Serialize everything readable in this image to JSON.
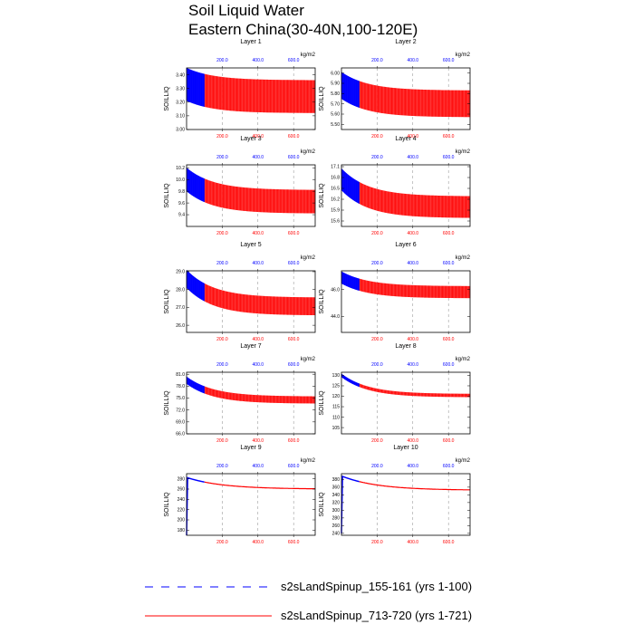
{
  "figure": {
    "title_line1": "Soil Liquid Water",
    "title_line2": "Eastern China(30-40N,100-120E)",
    "ylabel": "SOILLIQ",
    "units": "kg/m2"
  },
  "legend": [
    {
      "label": "s2sLandSpinup_155-161 (yrs 1-100)",
      "color": "#0000ff",
      "style": "dashed"
    },
    {
      "label": "s2sLandSpinup_713-720 (yrs 1-721)",
      "color": "#ff0000",
      "style": "solid"
    }
  ],
  "colors": {
    "blue_series": "#0000ff",
    "red_series": "#ff0000",
    "red_band": "#ff8888"
  },
  "chart_data": [
    {
      "type": "line",
      "title": "Layer 1",
      "ylabel": "SOILLIQ",
      "ylim": [
        3.0,
        3.45
      ],
      "yticks": [
        "3.00",
        "3.10",
        "3.20",
        "3.30",
        "3.40"
      ],
      "xlim": [
        0,
        721
      ],
      "bottom_xticks": [
        "200.0",
        "400.0",
        "600.0"
      ],
      "top_xticks": [
        "200.0",
        "400.0",
        "600.0"
      ],
      "series": [
        {
          "name": "s2sLandSpinup_155-161 (yrs 1-100)",
          "x_end": 100
        },
        {
          "name": "s2sLandSpinup_713-720 (yrs 1-721)",
          "x_end": 721
        }
      ],
      "start_mean": 3.33,
      "end_mean": 3.24,
      "seasonal_amp": 0.12
    },
    {
      "type": "line",
      "title": "Layer 2",
      "ylabel": "SOILLIQ",
      "ylim": [
        5.45,
        6.05
      ],
      "yticks": [
        "5.50",
        "5.60",
        "5.70",
        "5.80",
        "5.90",
        "6.00"
      ],
      "xlim": [
        0,
        721
      ],
      "bottom_xticks": [
        "200.0",
        "400.0",
        "600.0"
      ],
      "top_xticks": [
        "200.0",
        "400.0",
        "600.0"
      ],
      "series": [
        {
          "name": "s2sLandSpinup_155-161 (yrs 1-100)",
          "x_end": 100
        },
        {
          "name": "s2sLandSpinup_713-720 (yrs 1-721)",
          "x_end": 721
        }
      ],
      "start_mean": 5.88,
      "end_mean": 5.7,
      "seasonal_amp": 0.13
    },
    {
      "type": "line",
      "title": "Layer 3",
      "ylabel": "SOILLIQ",
      "ylim": [
        9.2,
        10.25
      ],
      "yticks": [
        "9.4",
        "9.6",
        "9.8",
        "10.0",
        "10.2"
      ],
      "xlim": [
        0,
        721
      ],
      "bottom_xticks": [
        "200.0",
        "400.0",
        "600.0"
      ],
      "top_xticks": [
        "200.0",
        "400.0",
        "600.0"
      ],
      "series": [
        {
          "name": "s2sLandSpinup_155-161 (yrs 1-100)",
          "x_end": 100
        },
        {
          "name": "s2sLandSpinup_713-720 (yrs 1-721)",
          "x_end": 721
        }
      ],
      "start_mean": 10.0,
      "end_mean": 9.62,
      "seasonal_amp": 0.2
    },
    {
      "type": "line",
      "title": "Layer 4",
      "ylabel": "SOILLIQ",
      "ylim": [
        15.45,
        17.15
      ],
      "yticks": [
        "15.6",
        "15.9",
        "16.2",
        "16.5",
        "16.8",
        "17.1"
      ],
      "xlim": [
        0,
        721
      ],
      "bottom_xticks": [
        "200.0",
        "400.0",
        "600.0"
      ],
      "top_xticks": [
        "200.0",
        "400.0",
        "600.0"
      ],
      "series": [
        {
          "name": "s2sLandSpinup_155-161 (yrs 1-100)",
          "x_end": 100
        },
        {
          "name": "s2sLandSpinup_713-720 (yrs 1-721)",
          "x_end": 721
        }
      ],
      "start_mean": 16.75,
      "end_mean": 15.98,
      "seasonal_amp": 0.3
    },
    {
      "type": "line",
      "title": "Layer 5",
      "ylabel": "SOILLIQ",
      "ylim": [
        25.6,
        29.05
      ],
      "yticks": [
        "26.0",
        "27.0",
        "28.0",
        "29.0"
      ],
      "xlim": [
        0,
        721
      ],
      "bottom_xticks": [
        "200.0",
        "400.0",
        "600.0"
      ],
      "top_xticks": [
        "200.0",
        "400.0",
        "600.0"
      ],
      "series": [
        {
          "name": "s2sLandSpinup_155-161 (yrs 1-100)",
          "x_end": 100
        },
        {
          "name": "s2sLandSpinup_713-720 (yrs 1-721)",
          "x_end": 721
        }
      ],
      "start_mean": 28.6,
      "end_mean": 27.05,
      "seasonal_amp": 0.5
    },
    {
      "type": "line",
      "title": "Layer 6",
      "ylabel": "SOILLIQ",
      "ylim": [
        42.8,
        47.4
      ],
      "yticks": [
        "44.0",
        "46.0"
      ],
      "xlim": [
        0,
        721
      ],
      "bottom_xticks": [
        "200.0",
        "400.0",
        "600.0"
      ],
      "top_xticks": [
        "200.0",
        "400.0",
        "600.0"
      ],
      "series": [
        {
          "name": "s2sLandSpinup_155-161 (yrs 1-100)",
          "x_end": 100
        },
        {
          "name": "s2sLandSpinup_713-720 (yrs 1-721)",
          "x_end": 721
        }
      ],
      "start_mean": 46.9,
      "end_mean": 45.8,
      "seasonal_amp": 0.45
    },
    {
      "type": "line",
      "title": "Layer 7",
      "ylabel": "SOILLIQ",
      "ylim": [
        66.0,
        81.5
      ],
      "yticks": [
        "66.0",
        "69.0",
        "72.0",
        "75.0",
        "78.0",
        "81.0"
      ],
      "xlim": [
        0,
        721
      ],
      "bottom_xticks": [
        "200.0",
        "400.0",
        "600.0"
      ],
      "top_xticks": [
        "200.0",
        "400.0",
        "600.0"
      ],
      "series": [
        {
          "name": "s2sLandSpinup_155-161 (yrs 1-100)",
          "x_end": 100
        },
        {
          "name": "s2sLandSpinup_713-720 (yrs 1-721)",
          "x_end": 721
        }
      ],
      "start_mean": 79.5,
      "end_mean": 74.5,
      "seasonal_amp": 0.9
    },
    {
      "type": "line",
      "title": "Layer 8",
      "ylabel": "SOILLIQ",
      "ylim": [
        102.0,
        131.5
      ],
      "yticks": [
        "105",
        "110",
        "115",
        "120",
        "125",
        "130"
      ],
      "xlim": [
        0,
        721
      ],
      "bottom_xticks": [
        "200.0",
        "400.0",
        "600.0"
      ],
      "top_xticks": [
        "200.0",
        "400.0",
        "600.0"
      ],
      "series": [
        {
          "name": "s2sLandSpinup_155-161 (yrs 1-100)",
          "x_end": 100
        },
        {
          "name": "s2sLandSpinup_713-720 (yrs 1-721)",
          "x_end": 721
        }
      ],
      "start_mean": 130.0,
      "end_mean": 120.3,
      "seasonal_amp": 0.8
    },
    {
      "type": "line",
      "title": "Layer 9",
      "ylabel": "SOILLIQ",
      "ylim": [
        170.0,
        290.0
      ],
      "yticks": [
        "180",
        "200",
        "220",
        "240",
        "260",
        "280"
      ],
      "xlim": [
        0,
        721
      ],
      "bottom_xticks": [
        "200.0",
        "400.0",
        "600.0"
      ],
      "top_xticks": [
        "200.0",
        "400.0",
        "600.0"
      ],
      "series": [
        {
          "name": "s2sLandSpinup_155-161 (yrs 1-100)",
          "x_end": 100
        },
        {
          "name": "s2sLandSpinup_713-720 (yrs 1-721)",
          "x_end": 721
        }
      ],
      "start_mean": 282.0,
      "end_mean": 260.0,
      "seasonal_amp": 0.5,
      "ramp_from": 170.0
    },
    {
      "type": "line",
      "title": "Layer 10",
      "ylabel": "SOILLIQ",
      "ylim": [
        235.0,
        395.0
      ],
      "yticks": [
        "240",
        "260",
        "280",
        "300",
        "320",
        "340",
        "360",
        "380"
      ],
      "xlim": [
        0,
        721
      ],
      "bottom_xticks": [
        "200.0",
        "400.0",
        "600.0"
      ],
      "top_xticks": [
        "200.0",
        "400.0",
        "600.0"
      ],
      "series": [
        {
          "name": "s2sLandSpinup_155-161 (yrs 1-100)",
          "x_end": 100
        },
        {
          "name": "s2sLandSpinup_713-720 (yrs 1-721)",
          "x_end": 721
        }
      ],
      "start_mean": 388.0,
      "end_mean": 352.0,
      "seasonal_amp": 0.5,
      "ramp_from": 240.0
    }
  ]
}
